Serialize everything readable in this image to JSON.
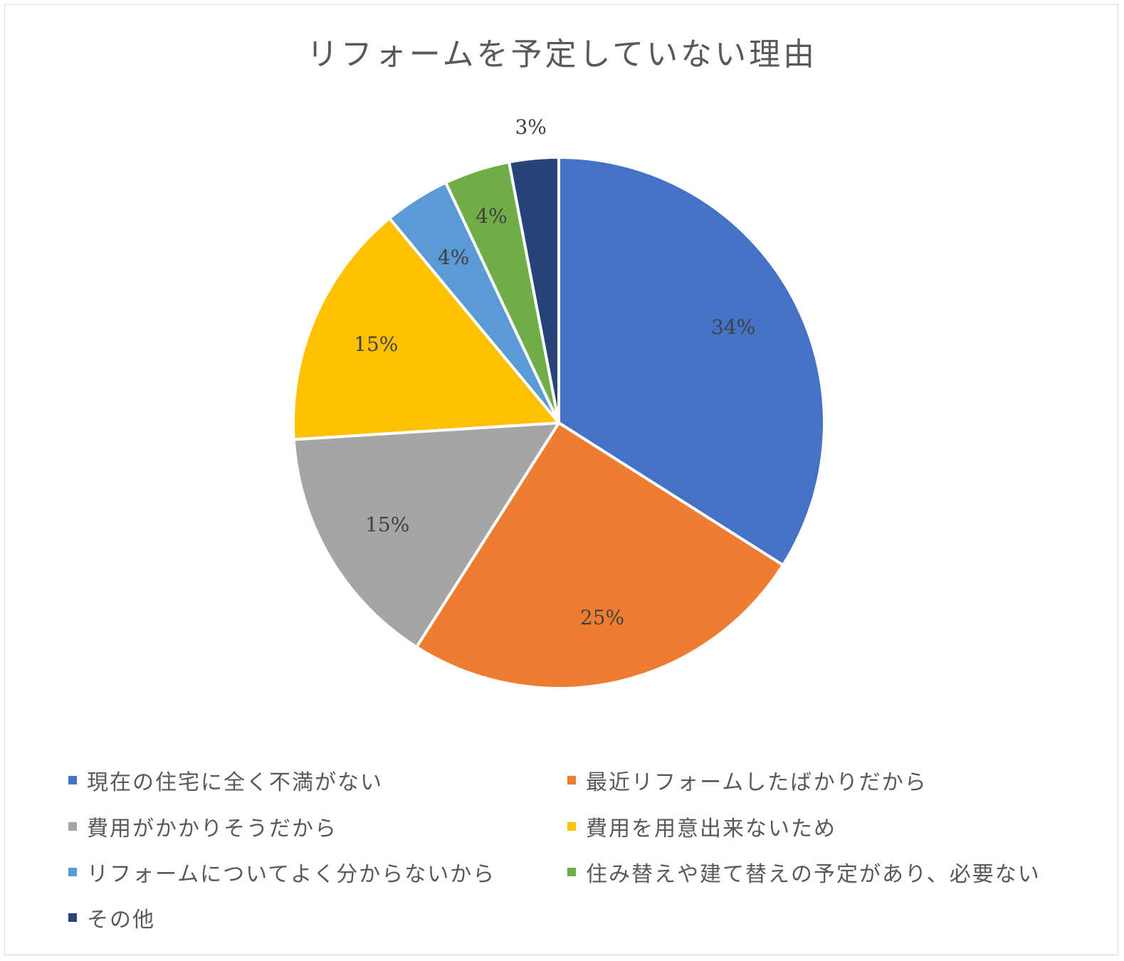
{
  "chart_data": {
    "type": "pie",
    "title": "リフォームを予定していない理由",
    "categories": [
      "現在の住宅に全く不満がない",
      "最近リフォームしたばかりだから",
      "費用がかかりそうだから",
      "費用を用意出来ないため",
      "リフォームについてよく分からないから",
      "住み替えや建て替えの予定があり、必要ない",
      "その他"
    ],
    "values": [
      34,
      25,
      15,
      15,
      4,
      4,
      3
    ],
    "labels": [
      "34%",
      "25%",
      "15%",
      "15%",
      "4%",
      "4%",
      "3%"
    ],
    "colors": [
      "#4472C4",
      "#ED7D31",
      "#A5A5A5",
      "#FFC000",
      "#5B9BD5",
      "#70AD47",
      "#264478"
    ],
    "legend_position": "bottom",
    "start_angle": "12 o'clock",
    "direction": "clockwise"
  }
}
